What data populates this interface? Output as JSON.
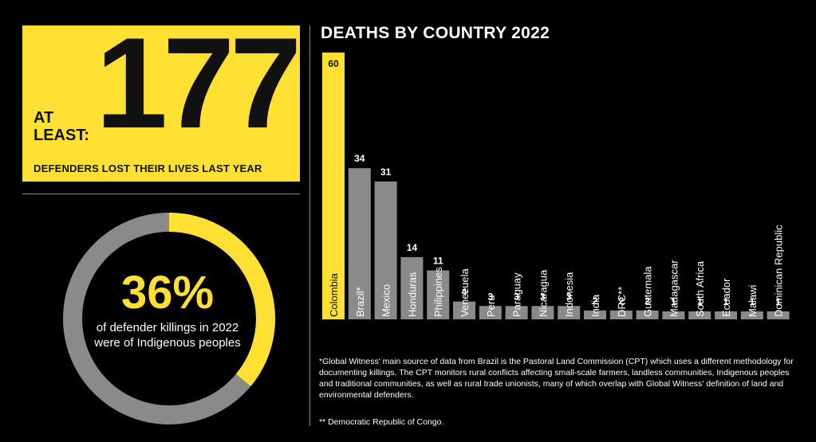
{
  "headline": {
    "prefix": "AT LEAST:",
    "number": "177",
    "caption": "DEFENDERS LOST THEIR LIVES LAST YEAR"
  },
  "donut": {
    "percent_label": "36%",
    "percent_value": 36,
    "description": "of defender killings in 2022 were of Indigenous peoples"
  },
  "colors": {
    "accent": "#FFE033",
    "bar_gray": "#8A8A8A",
    "background": "#000000"
  },
  "chart_data": {
    "type": "bar",
    "title": "DEATHS BY COUNTRY 2022",
    "categories": [
      "Colombia",
      "Brazil*",
      "Mexico",
      "Honduras",
      "Philippines",
      "Venezuela",
      "Peru",
      "Paraguay",
      "Nicaragua",
      "Indonesia",
      "India",
      "DRC**",
      "Guatemala",
      "Madagascar",
      "South Africa",
      "Ecuador",
      "Malawi",
      "Dominican Republic"
    ],
    "values": [
      60,
      34,
      31,
      14,
      11,
      4,
      3,
      3,
      3,
      3,
      2,
      2,
      2,
      1,
      1,
      1,
      1,
      1
    ],
    "ylim": [
      0,
      60
    ],
    "highlight_index": 0,
    "grid": false
  },
  "footnotes": {
    "brazil": "*Global Witness' main source of data from Brazil is the Pastoral Land Commission (CPT) which uses a different methodology for documenting killings. The CPT monitors rural conflicts affecting small-scale farmers, landless communities, Indigenous peoples and traditional communities, as well as rural trade unionists, many of which overlap with Global Witness' definition of land and environmental defenders.",
    "drc": "** Democratic Republic of Congo."
  }
}
